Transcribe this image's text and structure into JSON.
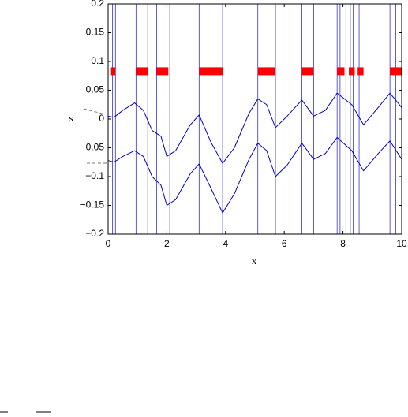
{
  "chart_data": {
    "type": "line",
    "xlabel": "x",
    "ylabel": "s",
    "xlim": [
      0,
      10
    ],
    "ylim": [
      -0.2,
      0.2
    ],
    "xticks": [
      0,
      2,
      4,
      6,
      8,
      10
    ],
    "yticks": [
      {
        "value": -0.2,
        "label": "−0.2"
      },
      {
        "value": -0.15,
        "label": "−0.15"
      },
      {
        "value": -0.1,
        "label": "−0.1"
      },
      {
        "value": -0.05,
        "label": "−0.05"
      },
      0,
      0.05,
      0.1,
      0.15,
      0.2
    ],
    "x": [
      0,
      0.2,
      0.5,
      0.9,
      1.2,
      1.5,
      1.8,
      2.0,
      2.3,
      2.8,
      3.1,
      3.5,
      3.9,
      4.3,
      4.8,
      5.1,
      5.4,
      5.7,
      6.1,
      6.6,
      7.0,
      7.4,
      7.8,
      8.3,
      8.7,
      9.2,
      9.6,
      10
    ],
    "series": [
      {
        "color": "#0000cc",
        "values": [
          0.005,
          0.003,
          0.015,
          0.028,
          0.015,
          -0.02,
          -0.03,
          -0.065,
          -0.055,
          -0.01,
          0.007,
          -0.04,
          -0.077,
          -0.05,
          0.01,
          0.035,
          0.025,
          -0.015,
          0.005,
          0.033,
          0.005,
          0.015,
          0.045,
          0.025,
          -0.01,
          0.02,
          0.045,
          0.02
        ]
      },
      {
        "color": "#0000cc",
        "values": [
          -0.072,
          -0.075,
          -0.065,
          -0.055,
          -0.065,
          -0.1,
          -0.115,
          -0.15,
          -0.14,
          -0.095,
          -0.078,
          -0.12,
          -0.163,
          -0.13,
          -0.07,
          -0.042,
          -0.055,
          -0.1,
          -0.08,
          -0.042,
          -0.07,
          -0.06,
          -0.032,
          -0.055,
          -0.09,
          -0.06,
          -0.038,
          -0.07
        ]
      }
    ],
    "vlines": [
      0.15,
      0.25,
      0.95,
      1.35,
      1.65,
      2.1,
      3.1,
      3.9,
      5.1,
      5.7,
      6.6,
      7.0,
      7.8,
      7.9,
      8.1,
      8.25,
      8.35,
      8.55,
      8.75,
      9.6,
      9.8
    ],
    "vline_color": "#3333dd",
    "band_y": 0.083,
    "band_color": "#ff0000",
    "bands": [
      [
        0.1,
        0.25
      ],
      [
        0.95,
        1.35
      ],
      [
        1.65,
        2.05
      ],
      [
        3.1,
        3.9
      ],
      [
        5.1,
        5.7
      ],
      [
        6.6,
        7.0
      ],
      [
        7.8,
        8.05
      ],
      [
        8.2,
        8.4
      ],
      [
        8.5,
        8.7
      ],
      [
        9.6,
        10
      ]
    ]
  }
}
